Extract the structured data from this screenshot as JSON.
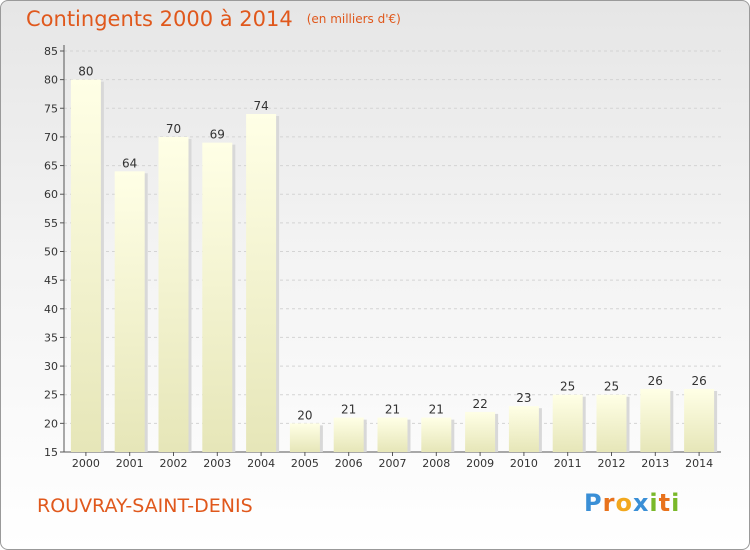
{
  "title": "Contingents 2000 à 2014",
  "subtitle": "(en milliers d'€)",
  "commune": "ROUVRAY-SAINT-DENIS",
  "logo": {
    "letters": [
      "P",
      "r",
      "o",
      "x",
      "i",
      "t",
      "i"
    ],
    "colors": [
      "#3a8fd6",
      "#e8721c",
      "#f2a81d",
      "#3a8fd6",
      "#79b829",
      "#e8721c",
      "#79b829"
    ]
  },
  "chart_data": {
    "type": "bar",
    "categories": [
      "2000",
      "2001",
      "2002",
      "2003",
      "2004",
      "2005",
      "2006",
      "2007",
      "2008",
      "2009",
      "2010",
      "2011",
      "2012",
      "2013",
      "2014"
    ],
    "values": [
      80,
      64,
      70,
      69,
      74,
      20,
      21,
      21,
      21,
      22,
      23,
      25,
      25,
      26,
      26
    ],
    "title": "Contingents 2000 à 2014",
    "ylim": [
      15,
      85
    ],
    "yticks": [
      15,
      20,
      25,
      30,
      35,
      40,
      45,
      50,
      55,
      60,
      65,
      70,
      75,
      80,
      85
    ],
    "grid": true
  }
}
